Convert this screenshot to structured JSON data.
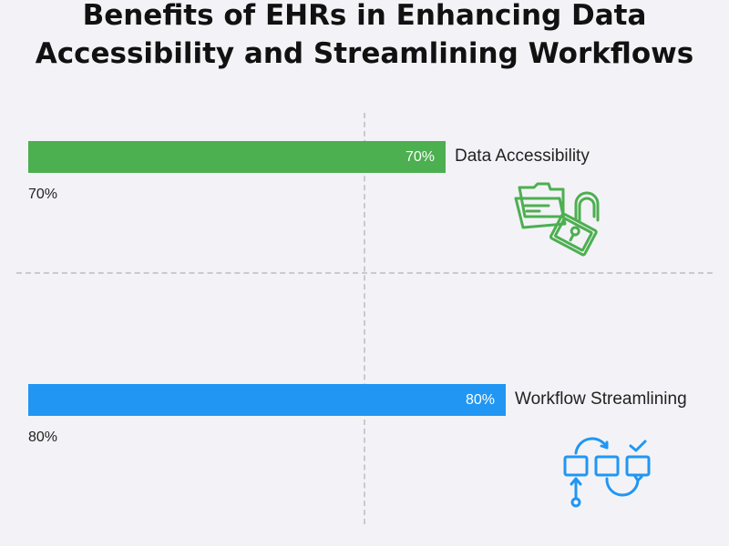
{
  "chart_data": {
    "type": "bar",
    "orientation": "horizontal",
    "title_lines": [
      "Benefits of EHRs in Enhancing Data",
      "Accessibility and Streamlining Workflows"
    ],
    "categories": [
      "Data Accessibility",
      "Workflow Streamlining"
    ],
    "values": [
      70,
      80
    ],
    "bar_labels": [
      "70%",
      "80%"
    ],
    "below_labels": [
      "70%",
      "80%"
    ],
    "colors": [
      "#4caf50",
      "#2196f3"
    ],
    "xlim": [
      0,
      100
    ],
    "grid": false,
    "icons": [
      "folder-lock-icon",
      "workflow-icon"
    ]
  }
}
